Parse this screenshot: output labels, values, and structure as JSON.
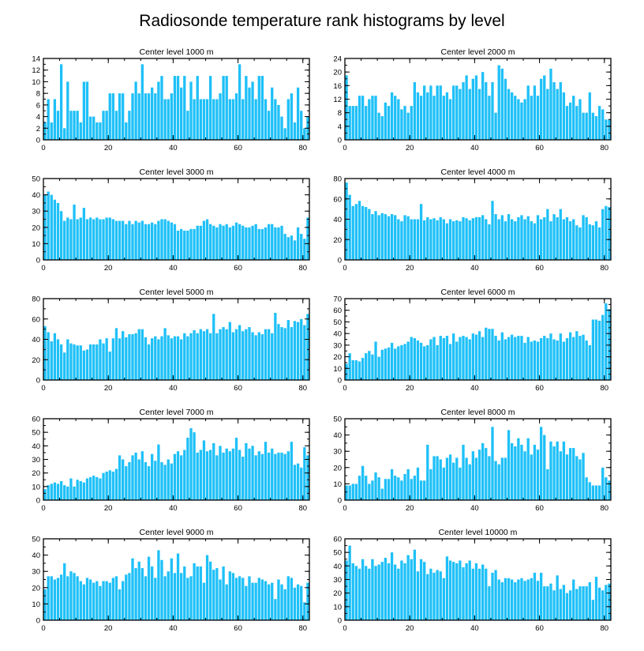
{
  "title": "Radiosonde temperature rank histograms by level",
  "colors": {
    "bar": "#1ec0f8",
    "axis": "#000000",
    "background": "#ffffff"
  },
  "chart_data": [
    {
      "type": "bar",
      "title": "Center level 1000 m",
      "xlabel": "",
      "ylabel": "",
      "xlim": [
        0,
        82
      ],
      "ylim": [
        0,
        14
      ],
      "xticks": [
        0,
        20,
        40,
        60,
        80
      ],
      "yticks": [
        0,
        2,
        4,
        6,
        8,
        10,
        12,
        14
      ],
      "values": [
        3,
        7,
        3,
        7,
        5,
        13,
        2,
        10,
        5,
        5,
        5,
        3,
        10,
        10,
        4,
        4,
        3,
        3,
        5,
        5,
        8,
        8,
        5,
        8,
        8,
        3,
        5,
        8,
        10,
        8,
        13,
        8,
        8,
        9,
        8,
        10,
        11,
        7,
        7,
        8,
        11,
        11,
        9,
        11,
        5,
        10,
        7,
        11,
        7,
        7,
        7,
        11,
        7,
        7,
        8,
        11,
        11,
        7,
        7,
        8,
        13,
        7,
        11,
        9,
        10,
        7,
        11,
        11,
        7,
        5,
        9,
        7,
        6,
        4,
        2,
        7,
        8,
        3,
        9,
        5,
        2,
        4
      ]
    },
    {
      "type": "bar",
      "title": "Center level 2000 m",
      "xlabel": "",
      "ylabel": "",
      "xlim": [
        0,
        82
      ],
      "ylim": [
        0,
        24
      ],
      "xticks": [
        0,
        20,
        40,
        60,
        80
      ],
      "yticks": [
        0,
        4,
        8,
        12,
        16,
        20,
        24
      ],
      "values": [
        19,
        10,
        10,
        10,
        13,
        13,
        10,
        12,
        13,
        13,
        8,
        7,
        11,
        10,
        14,
        13,
        12,
        9,
        10,
        8,
        10,
        17,
        14,
        13,
        16,
        14,
        16,
        13,
        16,
        16,
        13,
        14,
        12,
        16,
        16,
        15,
        17,
        19,
        15,
        18,
        19,
        15,
        20,
        17,
        13,
        17,
        8,
        22,
        21,
        18,
        15,
        14,
        13,
        12,
        11,
        12,
        16,
        13,
        16,
        13,
        18,
        19,
        15,
        21,
        17,
        15,
        17,
        14,
        10,
        11,
        13,
        10,
        12,
        8,
        8,
        14,
        8,
        7,
        10,
        9,
        6,
        6
      ]
    },
    {
      "type": "bar",
      "title": "Center level 3000 m",
      "xlabel": "",
      "ylabel": "",
      "xlim": [
        0,
        82
      ],
      "ylim": [
        0,
        50
      ],
      "xticks": [
        0,
        20,
        40,
        60,
        80
      ],
      "yticks": [
        0,
        10,
        20,
        30,
        40,
        50
      ],
      "values": [
        40,
        42,
        40,
        37,
        35,
        30,
        24,
        26,
        25,
        34,
        25,
        26,
        32,
        25,
        26,
        25,
        26,
        25,
        25,
        26,
        26,
        25,
        24,
        24,
        24,
        22,
        24,
        22,
        24,
        23,
        24,
        22,
        22,
        23,
        22,
        24,
        25,
        25,
        24,
        23,
        22,
        18,
        19,
        18,
        18,
        19,
        19,
        21,
        21,
        24,
        25,
        22,
        21,
        20,
        22,
        21,
        22,
        20,
        21,
        23,
        22,
        21,
        20,
        20,
        21,
        22,
        19,
        19,
        20,
        22,
        22,
        20,
        20,
        21,
        16,
        14,
        15,
        12,
        20,
        16,
        13,
        26
      ]
    },
    {
      "type": "bar",
      "title": "Center level 4000 m",
      "xlabel": "",
      "ylabel": "",
      "xlim": [
        0,
        82
      ],
      "ylim": [
        0,
        80
      ],
      "xticks": [
        0,
        20,
        40,
        60,
        80
      ],
      "yticks": [
        0,
        20,
        40,
        60,
        80
      ],
      "values": [
        76,
        64,
        53,
        55,
        58,
        53,
        52,
        50,
        45,
        48,
        44,
        46,
        45,
        43,
        45,
        44,
        40,
        38,
        44,
        43,
        40,
        40,
        40,
        55,
        39,
        42,
        40,
        41,
        39,
        42,
        40,
        36,
        40,
        38,
        39,
        38,
        42,
        41,
        39,
        41,
        42,
        42,
        44,
        40,
        35,
        58,
        45,
        40,
        44,
        38,
        45,
        40,
        38,
        42,
        44,
        40,
        43,
        38,
        36,
        44,
        40,
        42,
        50,
        38,
        45,
        42,
        50,
        40,
        42,
        38,
        40,
        34,
        32,
        44,
        42,
        35,
        34,
        38,
        32,
        50,
        53,
        52
      ]
    },
    {
      "type": "bar",
      "title": "Center level 5000 m",
      "xlabel": "",
      "ylabel": "",
      "xlim": [
        0,
        82
      ],
      "ylim": [
        0,
        80
      ],
      "xticks": [
        0,
        20,
        40,
        60,
        80
      ],
      "yticks": [
        0,
        20,
        40,
        60,
        80
      ],
      "values": [
        53,
        47,
        38,
        46,
        40,
        35,
        27,
        40,
        36,
        35,
        34,
        34,
        29,
        30,
        35,
        35,
        35,
        40,
        36,
        41,
        28,
        41,
        51,
        41,
        48,
        42,
        45,
        45,
        46,
        50,
        50,
        42,
        35,
        41,
        43,
        40,
        43,
        51,
        44,
        41,
        43,
        43,
        40,
        46,
        43,
        46,
        49,
        46,
        50,
        48,
        50,
        46,
        65,
        46,
        50,
        52,
        50,
        57,
        47,
        50,
        54,
        48,
        50,
        52,
        47,
        44,
        47,
        45,
        50,
        50,
        46,
        66,
        55,
        52,
        51,
        59,
        52,
        58,
        57,
        60,
        54,
        65
      ]
    },
    {
      "type": "bar",
      "title": "Center level 6000 m",
      "xlabel": "",
      "ylabel": "",
      "xlim": [
        0,
        82
      ],
      "ylim": [
        0,
        70
      ],
      "xticks": [
        0,
        20,
        40,
        60,
        80
      ],
      "yticks": [
        0,
        10,
        20,
        30,
        40,
        50,
        60,
        70
      ],
      "values": [
        14,
        23,
        17,
        17,
        16,
        19,
        23,
        25,
        22,
        33,
        20,
        26,
        27,
        28,
        32,
        27,
        29,
        30,
        31,
        33,
        37,
        36,
        34,
        32,
        29,
        30,
        35,
        37,
        30,
        38,
        36,
        38,
        31,
        40,
        33,
        37,
        38,
        37,
        35,
        40,
        39,
        42,
        37,
        45,
        44,
        44,
        38,
        34,
        41,
        35,
        37,
        39,
        37,
        38,
        38,
        32,
        37,
        33,
        34,
        33,
        36,
        38,
        36,
        40,
        35,
        34,
        40,
        33,
        36,
        41,
        37,
        42,
        38,
        39,
        34,
        30,
        52,
        52,
        51,
        56,
        66,
        61
      ]
    },
    {
      "type": "bar",
      "title": "Center level 7000 m",
      "xlabel": "",
      "ylabel": "",
      "xlim": [
        0,
        82
      ],
      "ylim": [
        0,
        60
      ],
      "xticks": [
        0,
        20,
        40,
        60,
        80
      ],
      "yticks": [
        0,
        10,
        20,
        30,
        40,
        50,
        60
      ],
      "values": [
        8,
        11,
        12,
        13,
        12,
        14,
        11,
        10,
        16,
        10,
        15,
        14,
        13,
        16,
        17,
        18,
        17,
        16,
        20,
        21,
        22,
        21,
        23,
        33,
        30,
        25,
        28,
        33,
        35,
        30,
        36,
        28,
        25,
        34,
        29,
        41,
        28,
        26,
        30,
        27,
        34,
        36,
        33,
        37,
        46,
        53,
        50,
        35,
        37,
        44,
        36,
        37,
        42,
        33,
        40,
        35,
        38,
        36,
        38,
        46,
        37,
        32,
        42,
        38,
        40,
        33,
        36,
        34,
        43,
        35,
        38,
        34,
        35,
        35,
        34,
        36,
        43,
        26,
        27,
        24,
        39,
        33
      ]
    },
    {
      "type": "bar",
      "title": "Center level 8000 m",
      "xlabel": "",
      "ylabel": "",
      "xlim": [
        0,
        82
      ],
      "ylim": [
        0,
        50
      ],
      "xticks": [
        0,
        20,
        40,
        60,
        80
      ],
      "yticks": [
        0,
        10,
        20,
        30,
        40,
        50
      ],
      "values": [
        9,
        9,
        10,
        10,
        15,
        21,
        15,
        10,
        12,
        17,
        14,
        7,
        13,
        13,
        19,
        15,
        14,
        12,
        16,
        19,
        13,
        15,
        20,
        12,
        12,
        34,
        19,
        27,
        27,
        25,
        20,
        26,
        28,
        23,
        26,
        20,
        34,
        26,
        22,
        30,
        26,
        31,
        35,
        32,
        27,
        45,
        24,
        22,
        26,
        26,
        43,
        35,
        33,
        38,
        34,
        30,
        38,
        28,
        34,
        31,
        45,
        40,
        19,
        36,
        33,
        36,
        30,
        36,
        28,
        32,
        32,
        27,
        25,
        29,
        14,
        11,
        9,
        9,
        9,
        20,
        14,
        12
      ]
    },
    {
      "type": "bar",
      "title": "Center level 9000 m",
      "xlabel": "",
      "ylabel": "",
      "xlim": [
        0,
        82
      ],
      "ylim": [
        0,
        50
      ],
      "xticks": [
        0,
        20,
        40,
        60,
        80
      ],
      "yticks": [
        0,
        10,
        20,
        30,
        40,
        50
      ],
      "values": [
        19,
        27,
        27,
        25,
        26,
        28,
        35,
        27,
        30,
        29,
        27,
        24,
        22,
        26,
        25,
        23,
        24,
        21,
        24,
        24,
        23,
        26,
        27,
        19,
        24,
        28,
        29,
        38,
        32,
        36,
        32,
        27,
        39,
        33,
        26,
        43,
        37,
        27,
        30,
        38,
        29,
        41,
        29,
        33,
        26,
        27,
        35,
        33,
        33,
        23,
        40,
        36,
        31,
        32,
        25,
        33,
        22,
        30,
        29,
        26,
        27,
        26,
        21,
        27,
        23,
        23,
        26,
        25,
        24,
        22,
        23,
        13,
        25,
        22,
        19,
        27,
        26,
        20,
        22,
        21,
        11,
        23
      ]
    },
    {
      "type": "bar",
      "title": "Center level 10000 m",
      "xlabel": "",
      "ylabel": "",
      "xlim": [
        0,
        82
      ],
      "ylim": [
        0,
        60
      ],
      "xticks": [
        0,
        20,
        40,
        60,
        80
      ],
      "yticks": [
        0,
        10,
        20,
        30,
        40,
        50,
        60
      ],
      "values": [
        44,
        55,
        42,
        40,
        38,
        45,
        40,
        38,
        45,
        40,
        41,
        43,
        46,
        42,
        50,
        41,
        38,
        44,
        42,
        48,
        45,
        52,
        36,
        45,
        43,
        34,
        38,
        35,
        37,
        36,
        31,
        47,
        44,
        43,
        42,
        44,
        39,
        42,
        44,
        38,
        42,
        38,
        41,
        38,
        25,
        35,
        37,
        30,
        28,
        31,
        31,
        30,
        28,
        30,
        31,
        29,
        30,
        31,
        35,
        29,
        35,
        25,
        25,
        27,
        22,
        33,
        23,
        26,
        20,
        22,
        30,
        23,
        25,
        25,
        25,
        28,
        15,
        32,
        24,
        22,
        26,
        27
      ]
    }
  ]
}
